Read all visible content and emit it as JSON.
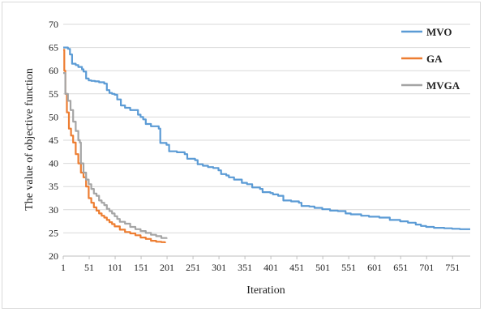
{
  "chart_data": {
    "type": "line",
    "title": "",
    "xlabel": "Iteration",
    "ylabel": "The value of objective function",
    "xlim": [
      1,
      785
    ],
    "ylim": [
      20,
      70
    ],
    "x_ticks": [
      1,
      51,
      101,
      151,
      201,
      251,
      301,
      351,
      401,
      451,
      501,
      551,
      601,
      651,
      701,
      751
    ],
    "y_ticks": [
      20,
      25,
      30,
      35,
      40,
      45,
      50,
      55,
      60,
      65,
      70
    ],
    "grid": "horizontal",
    "legend_position": "right",
    "series": [
      {
        "name": "MVO",
        "color": "#5b9bd5",
        "points": [
          [
            1,
            65
          ],
          [
            10,
            64.7
          ],
          [
            14,
            63.5
          ],
          [
            18,
            61.5
          ],
          [
            25,
            61.2
          ],
          [
            30,
            60.8
          ],
          [
            37,
            60.3
          ],
          [
            40,
            59.8
          ],
          [
            45,
            58.3
          ],
          [
            50,
            57.9
          ],
          [
            55,
            57.8
          ],
          [
            62,
            57.7
          ],
          [
            70,
            57.5
          ],
          [
            80,
            57.2
          ],
          [
            85,
            55.8
          ],
          [
            90,
            55.2
          ],
          [
            95,
            55
          ],
          [
            100,
            54.8
          ],
          [
            105,
            53.8
          ],
          [
            112,
            52.5
          ],
          [
            120,
            52
          ],
          [
            130,
            51.5
          ],
          [
            145,
            50.5
          ],
          [
            150,
            50
          ],
          [
            155,
            49.5
          ],
          [
            160,
            48.5
          ],
          [
            170,
            48
          ],
          [
            185,
            47.5
          ],
          [
            188,
            44.4
          ],
          [
            200,
            44
          ],
          [
            205,
            42.6
          ],
          [
            220,
            42.4
          ],
          [
            235,
            42
          ],
          [
            240,
            41
          ],
          [
            255,
            40.7
          ],
          [
            260,
            39.8
          ],
          [
            270,
            39.5
          ],
          [
            280,
            39.2
          ],
          [
            290,
            39
          ],
          [
            300,
            38.5
          ],
          [
            305,
            37.7
          ],
          [
            315,
            37.4
          ],
          [
            320,
            37
          ],
          [
            330,
            36.5
          ],
          [
            345,
            35.8
          ],
          [
            355,
            35.5
          ],
          [
            365,
            34.8
          ],
          [
            380,
            34.5
          ],
          [
            385,
            33.8
          ],
          [
            400,
            33.6
          ],
          [
            405,
            33.3
          ],
          [
            415,
            33
          ],
          [
            425,
            32
          ],
          [
            440,
            31.8
          ],
          [
            455,
            31.5
          ],
          [
            460,
            30.8
          ],
          [
            475,
            30.7
          ],
          [
            485,
            30.4
          ],
          [
            500,
            30.1
          ],
          [
            515,
            29.8
          ],
          [
            530,
            29.7
          ],
          [
            545,
            29.2
          ],
          [
            555,
            29
          ],
          [
            575,
            28.7
          ],
          [
            590,
            28.5
          ],
          [
            610,
            28.3
          ],
          [
            630,
            27.8
          ],
          [
            650,
            27.5
          ],
          [
            665,
            27.2
          ],
          [
            680,
            26.8
          ],
          [
            690,
            26.5
          ],
          [
            700,
            26.3
          ],
          [
            715,
            26.1
          ],
          [
            735,
            26
          ],
          [
            750,
            25.9
          ],
          [
            765,
            25.8
          ],
          [
            785,
            25.8
          ]
        ]
      },
      {
        "name": "GA",
        "color": "#ed7d31",
        "points": [
          [
            1,
            64.5
          ],
          [
            3,
            60
          ],
          [
            5,
            55
          ],
          [
            8,
            51
          ],
          [
            12,
            47.5
          ],
          [
            16,
            46
          ],
          [
            20,
            44.5
          ],
          [
            25,
            42
          ],
          [
            30,
            40
          ],
          [
            35,
            38
          ],
          [
            40,
            37
          ],
          [
            45,
            35
          ],
          [
            50,
            32.5
          ],
          [
            55,
            31.5
          ],
          [
            60,
            30.5
          ],
          [
            65,
            29.8
          ],
          [
            70,
            29.2
          ],
          [
            75,
            28.7
          ],
          [
            80,
            28.3
          ],
          [
            85,
            27.8
          ],
          [
            90,
            27.3
          ],
          [
            95,
            26.9
          ],
          [
            100,
            26.4
          ],
          [
            110,
            25.7
          ],
          [
            120,
            25.2
          ],
          [
            130,
            24.9
          ],
          [
            140,
            24.5
          ],
          [
            150,
            24
          ],
          [
            160,
            23.7
          ],
          [
            170,
            23.3
          ],
          [
            180,
            23.1
          ],
          [
            190,
            23
          ],
          [
            197,
            22.8
          ]
        ]
      },
      {
        "name": "MVGA",
        "color": "#a5a5a5",
        "points": [
          [
            1,
            59.5
          ],
          [
            5,
            55
          ],
          [
            10,
            53.5
          ],
          [
            15,
            51.5
          ],
          [
            20,
            49
          ],
          [
            25,
            47
          ],
          [
            30,
            45
          ],
          [
            33,
            44.5
          ],
          [
            35,
            40
          ],
          [
            40,
            38
          ],
          [
            45,
            36.5
          ],
          [
            50,
            35.5
          ],
          [
            55,
            34.5
          ],
          [
            60,
            33.5
          ],
          [
            65,
            33
          ],
          [
            70,
            32
          ],
          [
            75,
            31.5
          ],
          [
            80,
            31
          ],
          [
            85,
            30.2
          ],
          [
            90,
            29.7
          ],
          [
            95,
            29.2
          ],
          [
            100,
            28.6
          ],
          [
            105,
            28
          ],
          [
            110,
            27.4
          ],
          [
            120,
            27
          ],
          [
            130,
            26.3
          ],
          [
            140,
            25.8
          ],
          [
            150,
            25.4
          ],
          [
            160,
            25
          ],
          [
            170,
            24.6
          ],
          [
            180,
            24.3
          ],
          [
            190,
            23.9
          ],
          [
            200,
            23.7
          ]
        ]
      }
    ]
  }
}
